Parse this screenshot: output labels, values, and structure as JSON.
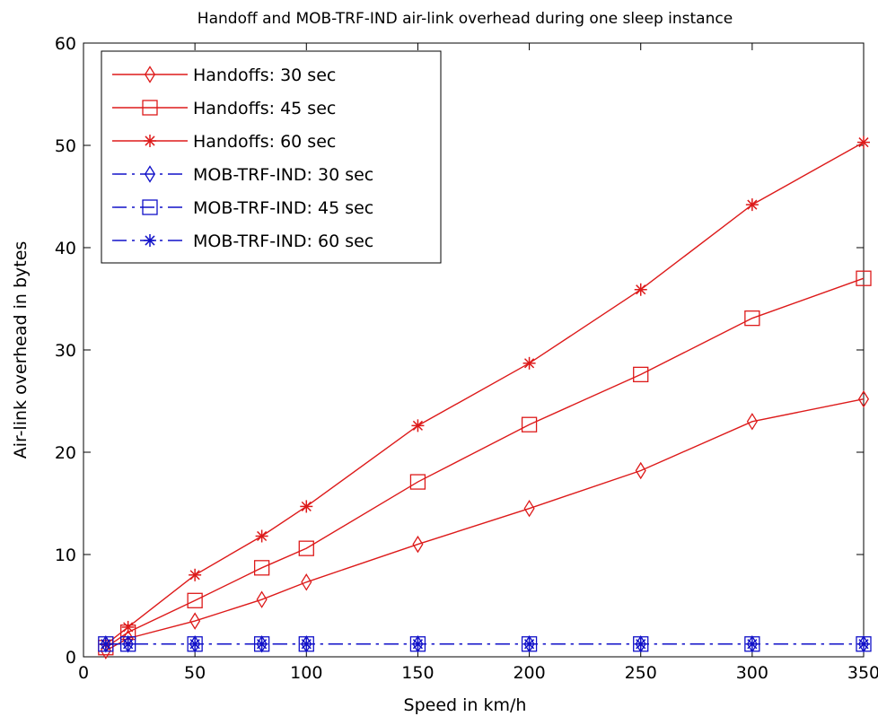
{
  "chart_data": {
    "type": "line",
    "title": "Handoff and MOB-TRF-IND air-link overhead during one sleep instance",
    "xlabel": "Speed in km/h",
    "ylabel": "Air-link overhead in bytes",
    "xlim": [
      0,
      350
    ],
    "ylim": [
      0,
      60
    ],
    "xticks": [
      "0",
      "50",
      "100",
      "150",
      "200",
      "250",
      "300",
      "350"
    ],
    "yticks": [
      "0",
      "10",
      "20",
      "30",
      "40",
      "50",
      "60"
    ],
    "grid": false,
    "legend_position": "top-left",
    "x": [
      10,
      20,
      50,
      80,
      100,
      150,
      200,
      250,
      300,
      350
    ],
    "series": [
      {
        "name": "Handoffs: 30 sec",
        "color": "#dd1a1a",
        "marker": "diamond",
        "linestyle": "solid",
        "values": [
          0.6,
          1.8,
          3.5,
          5.6,
          7.3,
          11.0,
          14.5,
          18.2,
          23.0,
          25.2
        ]
      },
      {
        "name": "Handoffs: 45 sec",
        "color": "#dd1a1a",
        "marker": "square",
        "linestyle": "solid",
        "values": [
          0.9,
          2.4,
          5.5,
          8.7,
          10.6,
          17.1,
          22.7,
          27.6,
          33.1,
          37.0
        ]
      },
      {
        "name": "Handoffs: 60 sec",
        "color": "#dd1a1a",
        "marker": "star",
        "linestyle": "solid",
        "values": [
          1.2,
          2.9,
          8.0,
          11.8,
          14.7,
          22.6,
          28.7,
          35.9,
          44.2,
          50.3
        ]
      },
      {
        "name": "MOB-TRF-IND: 30 sec",
        "color": "#1010c8",
        "marker": "diamond",
        "linestyle": "dashdot",
        "values": [
          1.25,
          1.25,
          1.25,
          1.25,
          1.25,
          1.25,
          1.25,
          1.25,
          1.25,
          1.25
        ]
      },
      {
        "name": "MOB-TRF-IND: 45 sec",
        "color": "#1010c8",
        "marker": "square",
        "linestyle": "dashdot",
        "values": [
          1.25,
          1.25,
          1.25,
          1.25,
          1.25,
          1.25,
          1.25,
          1.25,
          1.25,
          1.25
        ]
      },
      {
        "name": "MOB-TRF-IND: 60 sec",
        "color": "#1010c8",
        "marker": "star",
        "linestyle": "dashdot",
        "values": [
          1.25,
          1.25,
          1.25,
          1.25,
          1.25,
          1.25,
          1.25,
          1.25,
          1.25,
          1.25
        ]
      }
    ]
  }
}
